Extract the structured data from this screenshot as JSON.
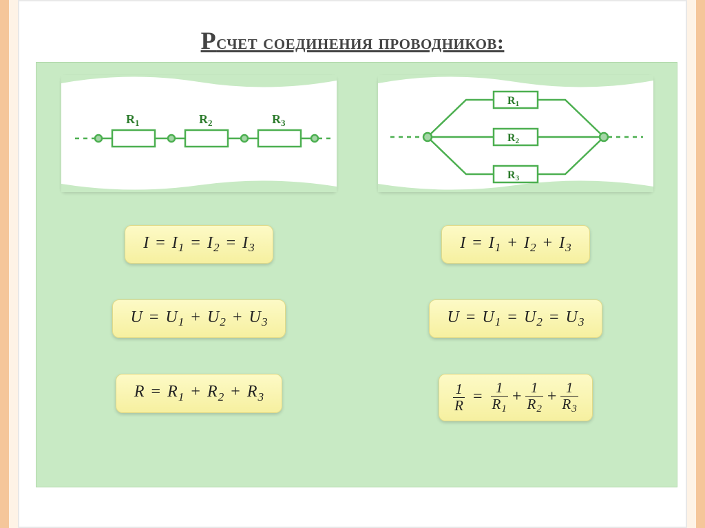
{
  "title": "Рсчет соединения проводников:",
  "colors": {
    "slide_background": "#c8eac4",
    "flag_background": "#ffffff",
    "formula_gradient_top": "#fdfac6",
    "formula_gradient_bottom": "#f6f0a0",
    "formula_border": "#e0da88",
    "circuit_stroke": "#4caf50",
    "circuit_fill": "#ffffff",
    "node_fill": "#a5d6a7",
    "label_color": "#2a7a2a",
    "stripe_orange": "#f5c69a",
    "stripe_cream": "#fef3e6"
  },
  "typography": {
    "title_fontsize": 30,
    "formula_fontsize": 24,
    "svg_label_fontsize": 18
  },
  "series": {
    "type": "circuit-series",
    "resistors": [
      "R₁",
      "R₂",
      "R₃"
    ],
    "labels": {
      "r1": "R",
      "r2": "R",
      "r3": "R",
      "s1": "1",
      "s2": "2",
      "s3": "3"
    },
    "formulas": {
      "current_html": "I <span class=\"op\">=</span> I<sub>1</sub> <span class=\"op\">=</span> I<sub>2</sub> <span class=\"op\">=</span> I<sub>3</sub>",
      "voltage_html": "U <span class=\"op\">=</span> U<sub>1</sub> <span class=\"op\">+</span> U<sub>2</sub> <span class=\"op\">+</span> U<sub>3</sub>",
      "resistance_html": "R <span class=\"op\">=</span> R<sub>1</sub> <span class=\"op\">+</span> R<sub>2</sub> <span class=\"op\">+</span> R<sub>3</sub>"
    }
  },
  "parallel": {
    "type": "circuit-parallel",
    "resistors": [
      "R₁",
      "R₂",
      "R₃"
    ],
    "labels": {
      "r1": "R",
      "r2": "R",
      "r3": "R",
      "s1": "1",
      "s2": "2",
      "s3": "3"
    },
    "formulas": {
      "current_html": "I <span class=\"op\">=</span> I<sub>1</sub> <span class=\"op\">+</span> I<sub>2</sub> <span class=\"op\">+</span> I<sub>3</sub>",
      "voltage_html": "U <span class=\"op\">=</span> U<sub>1</sub> <span class=\"op\">=</span> U<sub>2</sub> <span class=\"op\">=</span> U<sub>3</sub>",
      "resistance_html": "<span class=\"frac\"><span class=\"num\">1</span><span class=\"den\">R</span></span> <span class=\"op\">=</span> <span class=\"frac\"><span class=\"num\">1</span><span class=\"den\">R<sub>1</sub></span></span><span class=\"op\">+</span><span class=\"frac\"><span class=\"num\">1</span><span class=\"den\">R<sub>2</sub></span></span><span class=\"op\">+</span><span class=\"frac\"><span class=\"num\">1</span><span class=\"den\">R<sub>3</sub></span></span>"
    }
  }
}
